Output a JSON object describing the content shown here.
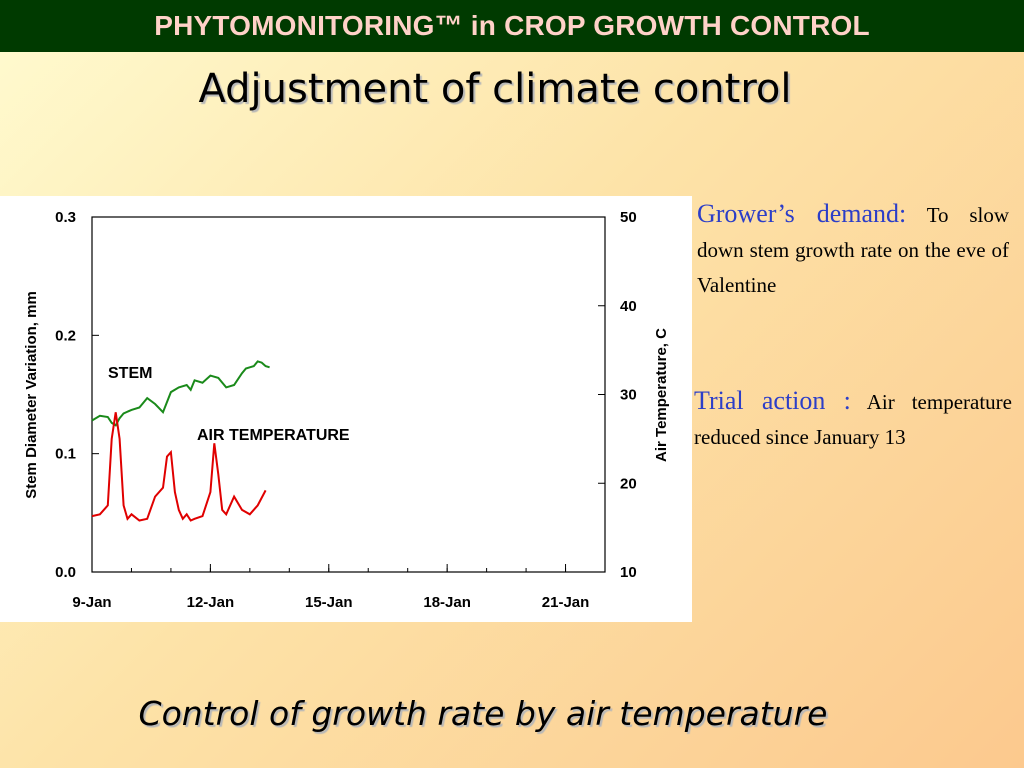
{
  "header": {
    "banner": "PHYTOMONITORING™ in CROP GROWTH CONTROL"
  },
  "slide": {
    "title": "Adjustment of climate control",
    "footer": "Control of growth rate by air temperature"
  },
  "side": {
    "demand_label": "Grower’s demand:",
    "demand_text": "To slow down stem growth rate on the eve of Valentine",
    "trial_label": "Trial action :",
    "trial_text": "Air temperature reduced since January 13"
  },
  "colors": {
    "stem": "#1a8a1a",
    "air": "#e00000",
    "accent_text": "#2c3ec8",
    "banner_bg": "#003a00"
  },
  "chart_data": {
    "type": "line",
    "ylabel_left": "Stem Diameter Variation, mm",
    "ylabel_right": "Air Temperature, C",
    "x_range": [
      9.0,
      22.0
    ],
    "x_ticks": [
      {
        "value": 9,
        "label": "9-Jan"
      },
      {
        "value": 12,
        "label": "12-Jan"
      },
      {
        "value": 15,
        "label": "15-Jan"
      },
      {
        "value": 18,
        "label": "18-Jan"
      },
      {
        "value": 21,
        "label": "21-Jan"
      }
    ],
    "y_left": {
      "range": [
        0.0,
        0.3
      ],
      "ticks": [
        "0.0",
        "0.1",
        "0.2",
        "0.3"
      ]
    },
    "y_right": {
      "range": [
        10,
        50
      ],
      "ticks": [
        "10",
        "20",
        "30",
        "40",
        "50"
      ]
    },
    "series": [
      {
        "name": "STEM",
        "axis": "left",
        "color": "#1a8a1a",
        "x": [
          9.0,
          9.2,
          9.4,
          9.5,
          9.6,
          9.7,
          9.8,
          10.0,
          10.2,
          10.4,
          10.6,
          10.8,
          11.0,
          11.2,
          11.4,
          11.5,
          11.6,
          11.8,
          12.0,
          12.2,
          12.4,
          12.6,
          12.8,
          12.9,
          13.0,
          13.1,
          13.2,
          13.3,
          13.4,
          13.5
        ],
        "y": [
          0.128,
          0.132,
          0.131,
          0.126,
          0.124,
          0.13,
          0.134,
          0.137,
          0.139,
          0.147,
          0.142,
          0.135,
          0.152,
          0.156,
          0.158,
          0.154,
          0.162,
          0.16,
          0.166,
          0.164,
          0.156,
          0.158,
          0.168,
          0.172,
          0.173,
          0.174,
          0.178,
          0.177,
          0.174,
          0.173
        ]
      },
      {
        "name": "AIR TEMPERATURE",
        "axis": "right",
        "color": "#e00000",
        "x": [
          9.0,
          9.2,
          9.4,
          9.5,
          9.6,
          9.7,
          9.8,
          9.9,
          10.0,
          10.2,
          10.4,
          10.6,
          10.8,
          10.9,
          11.0,
          11.1,
          11.2,
          11.3,
          11.4,
          11.5,
          11.6,
          11.8,
          12.0,
          12.1,
          12.2,
          12.3,
          12.4,
          12.6,
          12.8,
          13.0,
          13.2,
          13.4
        ],
        "y": [
          16.3,
          16.5,
          17.5,
          25.0,
          28.0,
          25.0,
          17.5,
          16.0,
          16.5,
          15.8,
          16.0,
          18.5,
          19.5,
          23.0,
          23.5,
          19.0,
          17.0,
          16.0,
          16.5,
          15.8,
          16.0,
          16.3,
          19.0,
          24.5,
          21.0,
          17.0,
          16.5,
          18.5,
          17.0,
          16.5,
          17.5,
          19.2
        ]
      }
    ],
    "labels": [
      {
        "text": "STEM",
        "series": "STEM"
      },
      {
        "text": "AIR TEMPERATURE",
        "series": "AIR TEMPERATURE"
      }
    ]
  }
}
